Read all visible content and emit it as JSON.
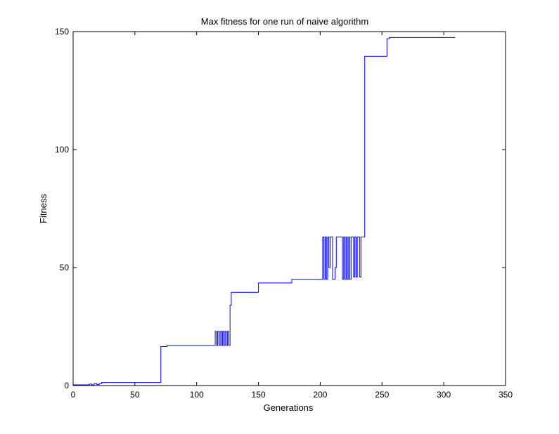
{
  "chart_data": {
    "type": "line",
    "title": "Max fitness for one run of naive algorithm",
    "xlabel": "Generations",
    "ylabel": "Fitness",
    "xlim": [
      0,
      350
    ],
    "ylim": [
      0,
      150
    ],
    "xticks": [
      "0",
      "50",
      "100",
      "150",
      "200",
      "250",
      "300",
      "350"
    ],
    "yticks": [
      "0",
      "50",
      "100",
      "150"
    ],
    "grid": false,
    "series": [
      {
        "color": "#0000ff",
        "step": true,
        "x": [
          0,
          13,
          15,
          17,
          19,
          21,
          23,
          70,
          71,
          76,
          114,
          115,
          116,
          117,
          118,
          119,
          120,
          121,
          122,
          123,
          124,
          125,
          126,
          127,
          128,
          149,
          150,
          176,
          177,
          201,
          202,
          203,
          204,
          205,
          206,
          207,
          208,
          209,
          210,
          211,
          212,
          213,
          214,
          215,
          216,
          217,
          218,
          219,
          220,
          221,
          222,
          223,
          224,
          225,
          226,
          227,
          228,
          229,
          230,
          231,
          232,
          233,
          234,
          235,
          236,
          253,
          254,
          256,
          300,
          301,
          309
        ],
        "y": [
          0.3,
          0.6,
          0.3,
          0.8,
          0.4,
          0.8,
          1.3,
          1.3,
          16.5,
          17,
          17,
          23,
          17,
          23,
          17,
          23,
          17,
          23,
          17,
          23,
          17,
          23,
          17,
          34,
          39.5,
          39.5,
          43.5,
          43.5,
          45,
          45,
          63,
          45,
          63,
          45,
          63,
          50,
          63,
          63,
          45,
          45,
          50,
          63,
          63,
          63,
          63,
          63,
          45,
          63,
          45,
          63,
          45,
          63,
          45,
          63,
          63,
          46,
          63,
          46,
          63,
          63,
          46,
          63,
          63,
          63,
          139.5,
          139.5,
          147,
          147.5,
          147.5,
          147.5,
          147.5
        ]
      }
    ]
  }
}
